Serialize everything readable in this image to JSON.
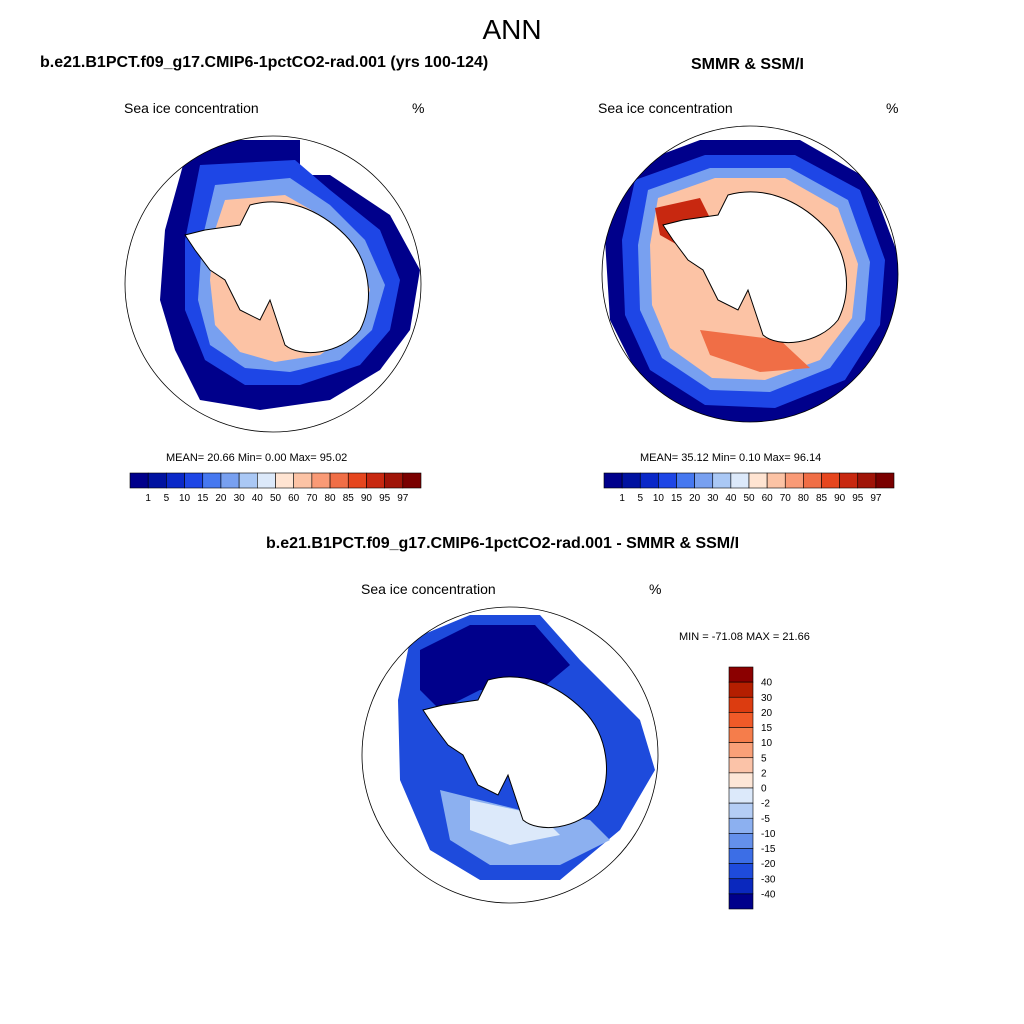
{
  "title": "ANN",
  "panels": [
    {
      "title": "b.e21.B1PCT.f09_g17.CMIP6-1pctCO2-rad.001 (yrs 100-124)",
      "field_name": "Sea ice concentration",
      "units": "%",
      "stats": "MEAN=  20.66  Min=   0.00  Max=  95.02"
    },
    {
      "title": "SMMR & SSM/I",
      "field_name": "Sea ice concentration",
      "units": "%",
      "stats": "MEAN=  35.12  Min=   0.10  Max=  96.14"
    },
    {
      "title": "b.e21.B1PCT.f09_g17.CMIP6-1pctCO2-rad.001 - SMMR & SSM/I",
      "field_name": "Sea ice concentration",
      "units": "%",
      "stats": "MIN = -71.08 MAX =  21.66"
    }
  ],
  "colorbar_abs": {
    "levels": [
      "1",
      "5",
      "10",
      "15",
      "20",
      "30",
      "40",
      "50",
      "60",
      "70",
      "80",
      "85",
      "90",
      "95",
      "97"
    ],
    "colors": [
      "#00008b",
      "#0012a0",
      "#0a28c8",
      "#1e46e6",
      "#4678f0",
      "#78a0f0",
      "#aac8f5",
      "#dce9fa",
      "#ffe4d2",
      "#fcc3a5",
      "#f99a76",
      "#f06e46",
      "#e6461e",
      "#c82810",
      "#a01408",
      "#7a0000"
    ]
  },
  "colorbar_diff": {
    "levels": [
      "40",
      "30",
      "20",
      "15",
      "10",
      "5",
      "2",
      "0",
      "-2",
      "-5",
      "-10",
      "-15",
      "-20",
      "-30",
      "-40"
    ],
    "colors": [
      "#8b0000",
      "#b41e00",
      "#dc3c10",
      "#f05a28",
      "#f57d4b",
      "#f9a078",
      "#fbc3a8",
      "#fde6d7",
      "#dce9fa",
      "#b4cdf5",
      "#8cb0f0",
      "#6490eb",
      "#3c6ee6",
      "#1e4bdc",
      "#0a28be",
      "#00008b"
    ]
  },
  "colors": {
    "ice_deep": "#00008b",
    "ice_dark": "#0a28c8",
    "ice_mid": "#4678f0",
    "ice_light": "#aac8f5",
    "ice_pale": "#ffe4d2",
    "ice_peach": "#fcc3a5",
    "ice_orange": "#f06e46",
    "ice_red": "#c82810",
    "diff_white": "#dce9fa"
  }
}
